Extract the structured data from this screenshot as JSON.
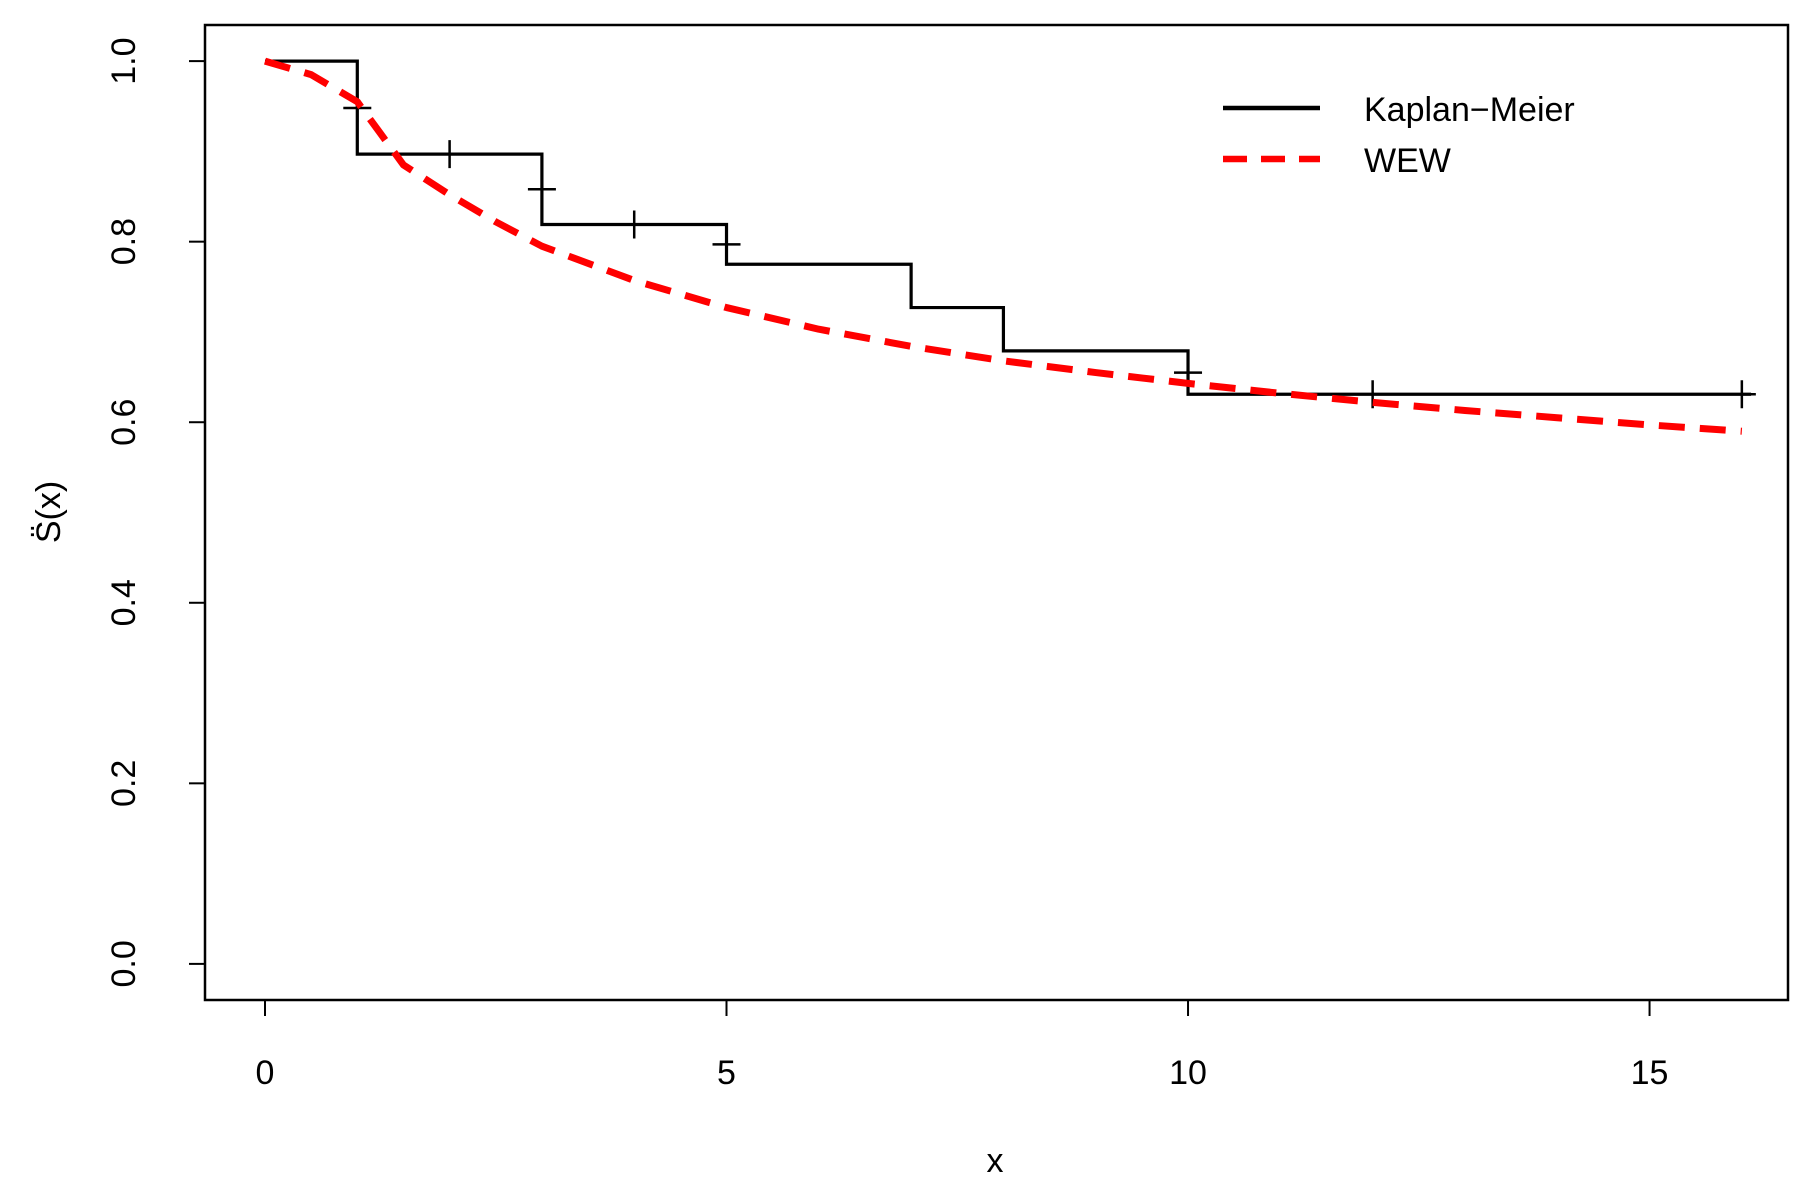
{
  "chart_data": {
    "type": "line",
    "title": "",
    "xlabel": "x",
    "ylabel": "S̈(x)",
    "xlim": [
      -0.65,
      16.5
    ],
    "ylim": [
      -0.04,
      1.04
    ],
    "xticks": [
      0,
      5,
      10,
      15
    ],
    "yticks": [
      0.0,
      0.2,
      0.4,
      0.6,
      0.8,
      1.0
    ],
    "xtick_labels": [
      "0",
      "5",
      "10",
      "15"
    ],
    "ytick_labels": [
      "0.0",
      "0.2",
      "0.4",
      "0.6",
      "0.8",
      "1.0"
    ],
    "legend_position": "top-right",
    "series": [
      {
        "name": "Kaplan−Meier",
        "style": "step",
        "color": "#000000",
        "x": [
          0,
          1,
          3,
          5,
          7,
          8,
          10,
          16.1
        ],
        "y": [
          1.0,
          0.897,
          0.819,
          0.775,
          0.727,
          0.679,
          0.631,
          0.631
        ],
        "censor_marks": [
          {
            "x": 1,
            "y": 0.948
          },
          {
            "x": 2,
            "y": 0.897
          },
          {
            "x": 3,
            "y": 0.858
          },
          {
            "x": 4,
            "y": 0.819
          },
          {
            "x": 5,
            "y": 0.797
          },
          {
            "x": 10,
            "y": 0.655
          },
          {
            "x": 12,
            "y": 0.631
          },
          {
            "x": 16,
            "y": 0.631
          }
        ]
      },
      {
        "name": "WEW",
        "style": "dashed",
        "color": "#ff0000",
        "x": [
          0,
          0.5,
          1.0,
          1.25,
          1.5,
          2,
          2.5,
          3,
          4,
          5,
          6,
          7,
          8,
          9,
          10,
          11,
          12,
          13,
          14,
          15,
          16
        ],
        "y": [
          1.0,
          0.985,
          0.955,
          0.92,
          0.885,
          0.852,
          0.822,
          0.795,
          0.757,
          0.727,
          0.703,
          0.684,
          0.668,
          0.655,
          0.643,
          0.632,
          0.622,
          0.613,
          0.605,
          0.597,
          0.59
        ]
      }
    ]
  }
}
